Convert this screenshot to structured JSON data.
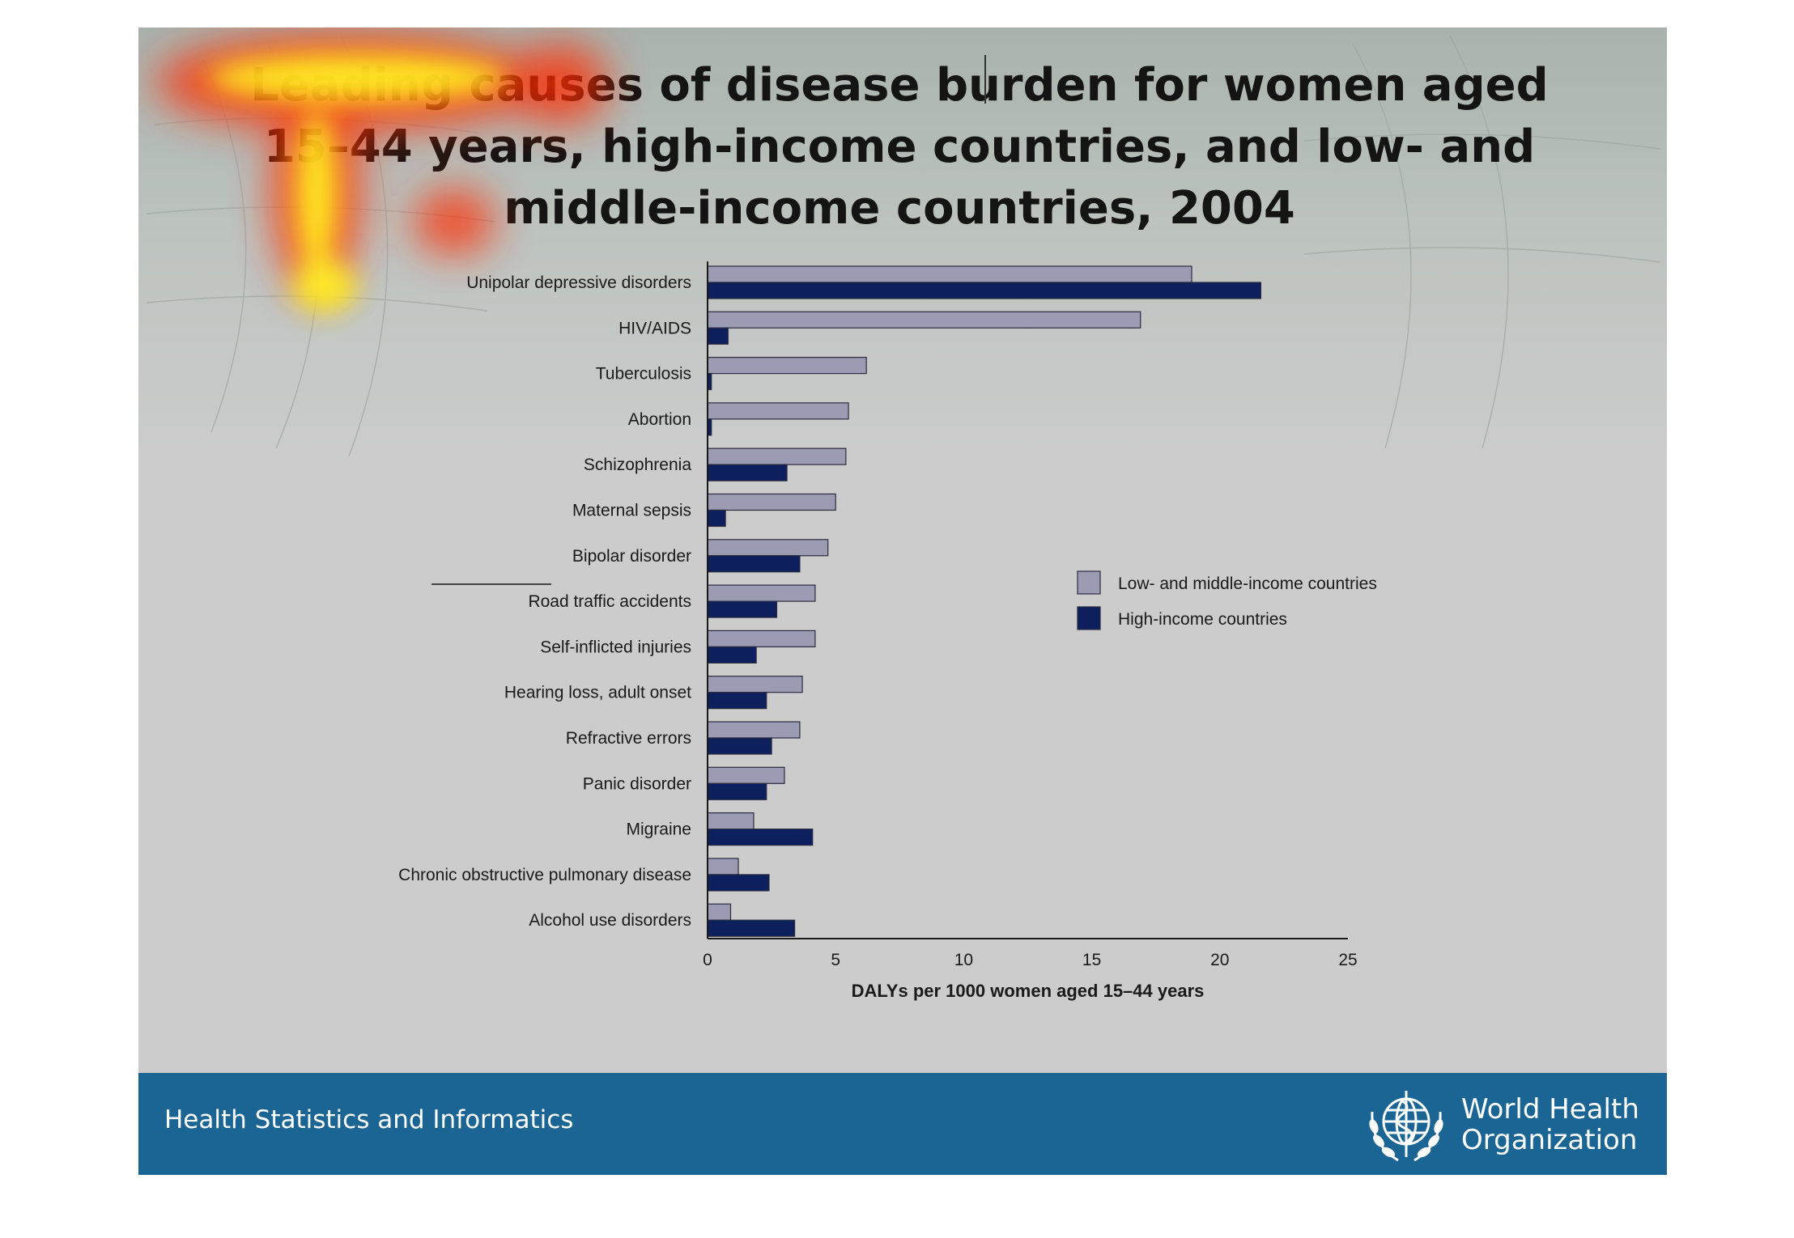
{
  "slide": {
    "title": "Leading causes of disease burden for women aged 15–44 years, high-income countries, and low- and middle-income countries, 2004",
    "footer_text": "Health Statistics and Informatics",
    "org_name_line1": "World Health",
    "org_name_line2": "Organization",
    "colors": {
      "footer_bar": "#1a6594",
      "heatmap_core": "#ffff33",
      "heatmap_edge": "#ff3300"
    }
  },
  "chart_data": {
    "type": "bar",
    "orientation": "horizontal",
    "categories": [
      "Unipolar depressive disorders",
      "HIV/AIDS",
      "Tuberculosis",
      "Abortion",
      "Schizophrenia",
      "Maternal sepsis",
      "Bipolar disorder",
      "Road traffic accidents",
      "Self-inflicted injuries",
      "Hearing loss, adult onset",
      "Refractive errors",
      "Panic disorder",
      "Migraine",
      "Chronic obstructive pulmonary disease",
      "Alcohol use disorders"
    ],
    "series": [
      {
        "name": "Low- and middle-income countries",
        "color": "#9b9bb3",
        "values": [
          18.9,
          16.9,
          6.2,
          5.5,
          5.4,
          5.0,
          4.7,
          4.2,
          4.2,
          3.7,
          3.6,
          3.0,
          1.8,
          1.2,
          0.9
        ]
      },
      {
        "name": "High-income countries",
        "color": "#0d1f5c",
        "values": [
          21.6,
          0.8,
          0.15,
          0.15,
          3.1,
          0.7,
          3.6,
          2.7,
          1.9,
          2.3,
          2.5,
          2.3,
          4.1,
          2.4,
          3.4
        ]
      }
    ],
    "xlabel": "DALYs per 1000 women aged 15–44 years",
    "xlim": [
      0,
      25
    ],
    "xticks": [
      0,
      5,
      10,
      15,
      20,
      25
    ],
    "grid": false,
    "legend_position": "right"
  }
}
